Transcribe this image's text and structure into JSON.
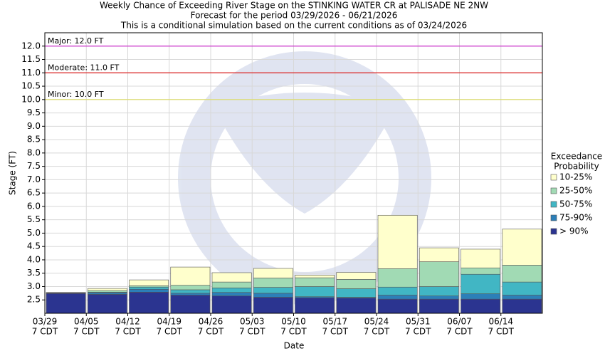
{
  "chart_data": {
    "type": "exceedance",
    "title": [
      "Weekly Chance of Exceeding River Stage on the STINKING WATER CR at PALISADE NE 2NW",
      "Forecast for the period 03/29/2026 - 06/21/2026",
      "This is a conditional simulation based on the current conditions as of 03/24/2026"
    ],
    "x_label": "Date",
    "y_label": "Stage (FT)",
    "categories": [
      "03/29",
      "04/05",
      "04/12",
      "04/19",
      "04/26",
      "05/03",
      "05/10",
      "05/17",
      "05/24",
      "05/31",
      "06/07",
      "06/14"
    ],
    "category_sublabel": "7 CDT",
    "legend_title": [
      "Exceedance",
      "Probability"
    ],
    "series": [
      {
        "name": "> 90%",
        "color": "#2b3490",
        "values": [
          2.74,
          2.71,
          2.79,
          2.68,
          2.65,
          2.6,
          2.58,
          2.57,
          2.53,
          2.53,
          2.53,
          2.53
        ]
      },
      {
        "name": "75-90%",
        "color": "#2c7fb8",
        "values": [
          2.75,
          2.77,
          2.9,
          2.75,
          2.78,
          2.75,
          2.62,
          2.6,
          2.68,
          2.65,
          2.73,
          2.68
        ]
      },
      {
        "name": "50-75%",
        "color": "#41b6c4",
        "values": [
          2.76,
          2.79,
          2.98,
          2.88,
          2.95,
          2.97,
          3.0,
          2.92,
          2.98,
          3.0,
          3.46,
          3.17
        ]
      },
      {
        "name": "25-50%",
        "color": "#a1dab4",
        "values": [
          2.77,
          2.85,
          3.03,
          3.05,
          3.17,
          3.32,
          3.33,
          3.27,
          3.67,
          3.93,
          3.7,
          3.8
        ]
      },
      {
        "name": "10-25%",
        "color": "#ffffcc",
        "values": [
          2.78,
          2.93,
          3.25,
          3.73,
          3.52,
          3.68,
          3.43,
          3.53,
          5.67,
          4.45,
          4.4,
          5.15
        ]
      }
    ],
    "thresholds": [
      {
        "label": "Major: 12.0 FT",
        "value": 12,
        "color": "#cc33cc"
      },
      {
        "label": "Moderate: 11.0 FT",
        "value": 11,
        "color": "#dd2222"
      },
      {
        "label": "Minor: 10.0 FT",
        "value": 10,
        "color": "#dddd66"
      }
    ],
    "ylim": [
      2.0,
      12.5
    ],
    "yticks": [
      2.5,
      {
        "value": 3,
        "label": "3.0"
      },
      3.5,
      {
        "value": 4,
        "label": "4.0"
      },
      4.5,
      {
        "value": 5,
        "label": "5.0"
      },
      5.5,
      {
        "value": 6,
        "label": "6.0"
      },
      6.5,
      {
        "value": 7,
        "label": "7.0"
      },
      7.5,
      {
        "value": 8,
        "label": "8.0"
      },
      8.5,
      {
        "value": 9,
        "label": "9.0"
      },
      9.5,
      {
        "value": 10,
        "label": "10.0"
      },
      10.5,
      {
        "value": 11,
        "label": "11.0"
      },
      11.5,
      {
        "value": 12,
        "label": "12.0"
      }
    ],
    "grid": true
  }
}
